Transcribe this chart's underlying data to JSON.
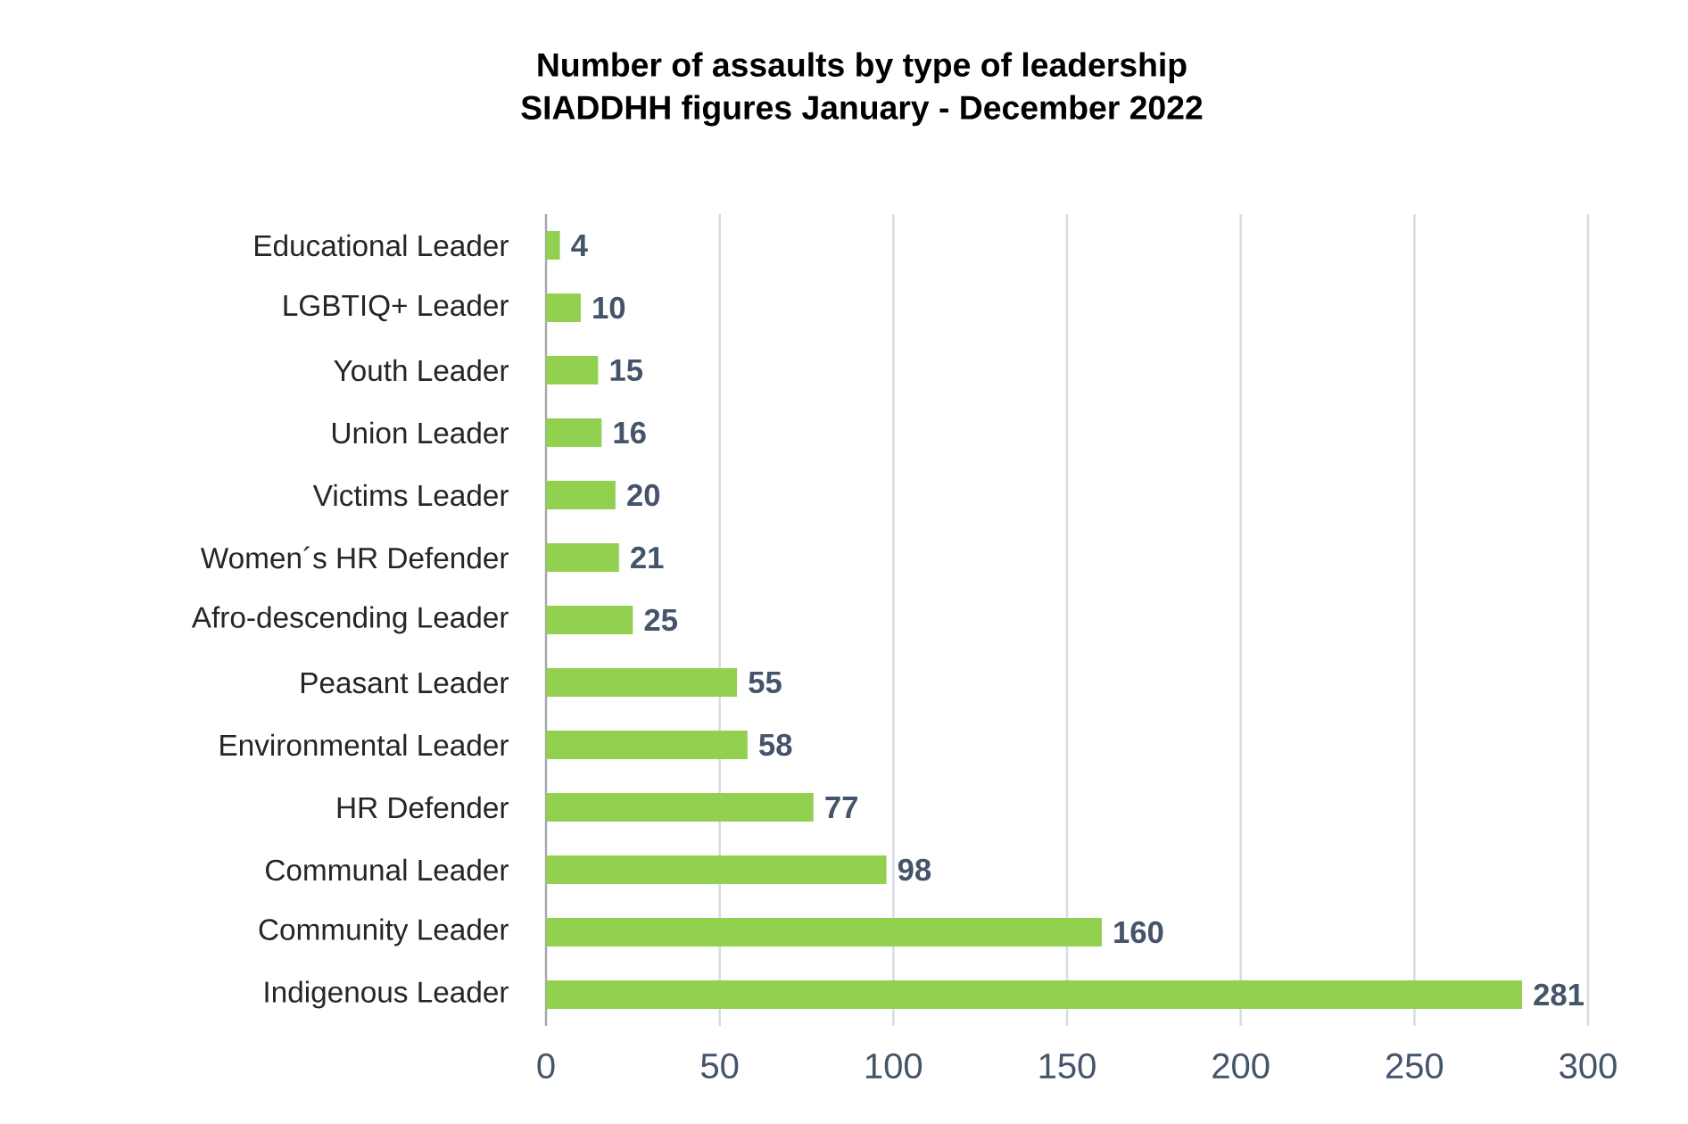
{
  "chart_data": {
    "type": "bar",
    "orientation": "horizontal",
    "title": "Number of assaults by type of leadership",
    "subtitle": "SIADDHH figures January - December 2022",
    "categories": [
      "Educational Leader",
      "LGBTIQ+ Leader",
      "Youth Leader",
      "Union Leader",
      "Victims Leader",
      "Women´s HR Defender",
      "Afro-descending Leader",
      "Peasant Leader",
      "Environmental Leader",
      "HR Defender",
      "Communal Leader",
      "Community Leader",
      "Indigenous Leader"
    ],
    "values": [
      4,
      10,
      15,
      16,
      20,
      21,
      25,
      55,
      58,
      77,
      98,
      160,
      281
    ],
    "color": "#92d050",
    "xlim": [
      0,
      300
    ],
    "xticks": [
      0,
      50,
      100,
      150,
      200,
      250,
      300
    ],
    "grid": "x",
    "data_labels": true
  }
}
